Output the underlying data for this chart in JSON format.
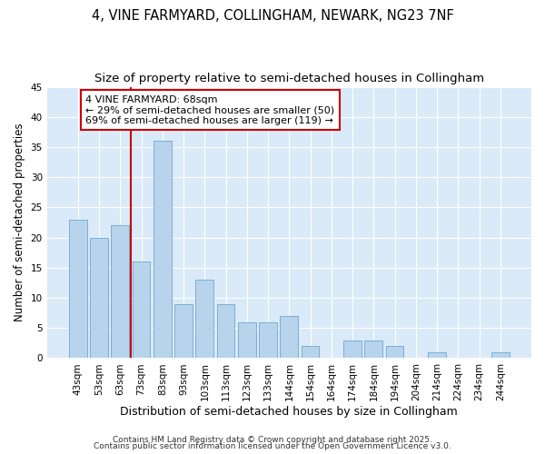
{
  "title1": "4, VINE FARMYARD, COLLINGHAM, NEWARK, NG23 7NF",
  "title2": "Size of property relative to semi-detached houses in Collingham",
  "xlabel": "Distribution of semi-detached houses by size in Collingham",
  "ylabel": "Number of semi-detached properties",
  "categories": [
    "43sqm",
    "53sqm",
    "63sqm",
    "73sqm",
    "83sqm",
    "93sqm",
    "103sqm",
    "113sqm",
    "123sqm",
    "133sqm",
    "144sqm",
    "154sqm",
    "164sqm",
    "174sqm",
    "184sqm",
    "194sqm",
    "204sqm",
    "214sqm",
    "224sqm",
    "234sqm",
    "244sqm"
  ],
  "values": [
    23,
    20,
    22,
    16,
    36,
    9,
    13,
    9,
    6,
    6,
    7,
    2,
    0,
    3,
    3,
    2,
    0,
    1,
    0,
    0,
    1
  ],
  "bar_color": "#b8d4ed",
  "bar_edgecolor": "#7aaed4",
  "annotation_text": "4 VINE FARMYARD: 68sqm\n← 29% of semi-detached houses are smaller (50)\n69% of semi-detached houses are larger (119) →",
  "annotation_box_facecolor": "#ffffff",
  "annotation_box_edgecolor": "#cc0000",
  "vline_color": "#cc0000",
  "vline_pos": 2.5,
  "ylim": [
    0,
    45
  ],
  "yticks": [
    0,
    5,
    10,
    15,
    20,
    25,
    30,
    35,
    40,
    45
  ],
  "plot_bg_color": "#daeaf8",
  "fig_bg_color": "#ffffff",
  "grid_color": "#ffffff",
  "footer1": "Contains HM Land Registry data © Crown copyright and database right 2025.",
  "footer2": "Contains public sector information licensed under the Open Government Licence v3.0.",
  "title_fontsize": 10.5,
  "subtitle_fontsize": 9.5,
  "xlabel_fontsize": 9,
  "ylabel_fontsize": 8.5,
  "tick_fontsize": 7.5,
  "annotation_fontsize": 8,
  "footer_fontsize": 6.5
}
